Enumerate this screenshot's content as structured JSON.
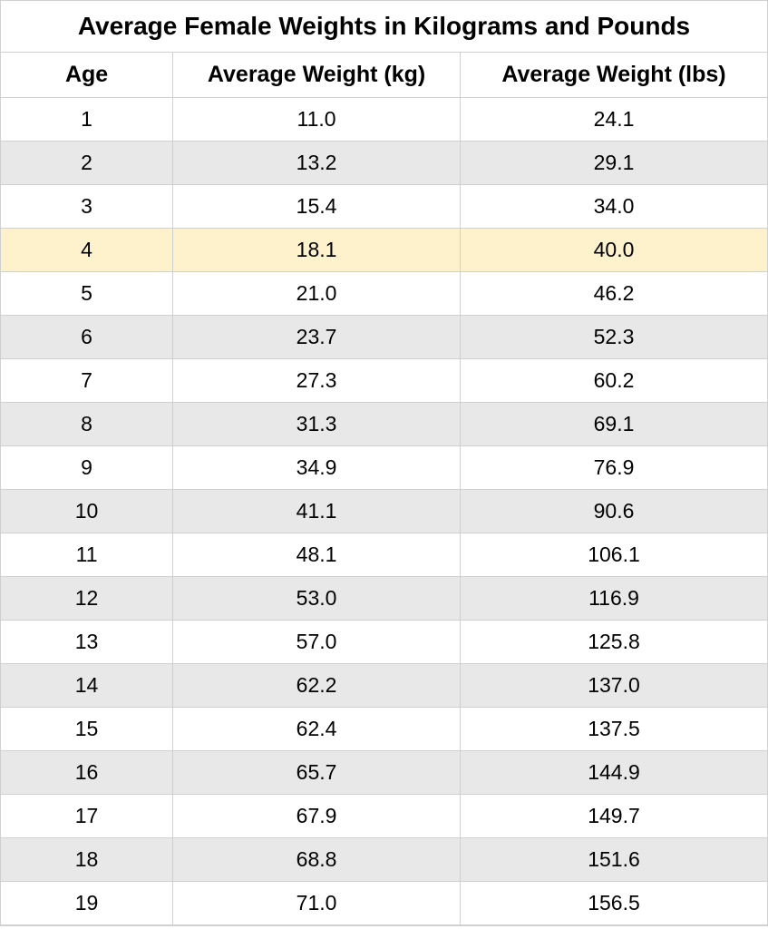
{
  "table": {
    "title": "Average Female Weights in Kilograms and Pounds",
    "columns": [
      {
        "key": "age",
        "label": "Age",
        "width_pct": 22.5
      },
      {
        "key": "kg",
        "label": "Average Weight (kg)",
        "width_pct": 37.5
      },
      {
        "key": "lbs",
        "label": "Average Weight (lbs)",
        "width_pct": 40
      }
    ],
    "rows": [
      {
        "age": "1",
        "kg": "11.0",
        "lbs": "24.1",
        "highlight": false
      },
      {
        "age": "2",
        "kg": "13.2",
        "lbs": "29.1",
        "highlight": false
      },
      {
        "age": "3",
        "kg": "15.4",
        "lbs": "34.0",
        "highlight": false
      },
      {
        "age": "4",
        "kg": "18.1",
        "lbs": "40.0",
        "highlight": true
      },
      {
        "age": "5",
        "kg": "21.0",
        "lbs": "46.2",
        "highlight": false
      },
      {
        "age": "6",
        "kg": "23.7",
        "lbs": "52.3",
        "highlight": false
      },
      {
        "age": "7",
        "kg": "27.3",
        "lbs": "60.2",
        "highlight": false
      },
      {
        "age": "8",
        "kg": "31.3",
        "lbs": "69.1",
        "highlight": false
      },
      {
        "age": "9",
        "kg": "34.9",
        "lbs": "76.9",
        "highlight": false
      },
      {
        "age": "10",
        "kg": "41.1",
        "lbs": "90.6",
        "highlight": false
      },
      {
        "age": "11",
        "kg": "48.1",
        "lbs": "106.1",
        "highlight": false
      },
      {
        "age": "12",
        "kg": "53.0",
        "lbs": "116.9",
        "highlight": false
      },
      {
        "age": "13",
        "kg": "57.0",
        "lbs": "125.8",
        "highlight": false
      },
      {
        "age": "14",
        "kg": "62.2",
        "lbs": "137.0",
        "highlight": false
      },
      {
        "age": "15",
        "kg": "62.4",
        "lbs": "137.5",
        "highlight": false
      },
      {
        "age": "16",
        "kg": "65.7",
        "lbs": "144.9",
        "highlight": false
      },
      {
        "age": "17",
        "kg": "67.9",
        "lbs": "149.7",
        "highlight": false
      },
      {
        "age": "18",
        "kg": "68.8",
        "lbs": "151.6",
        "highlight": false
      },
      {
        "age": "19",
        "kg": "71.0",
        "lbs": "156.5",
        "highlight": false
      }
    ],
    "colors": {
      "background": "#ffffff",
      "row_even": "#e8e8e8",
      "row_odd": "#ffffff",
      "row_highlight": "#fdf2cb",
      "border": "#d0d0d0",
      "text": "#000000"
    },
    "typography": {
      "title_fontsize": 28,
      "header_fontsize": 25,
      "cell_fontsize": 23,
      "font_family": "Arial"
    }
  }
}
